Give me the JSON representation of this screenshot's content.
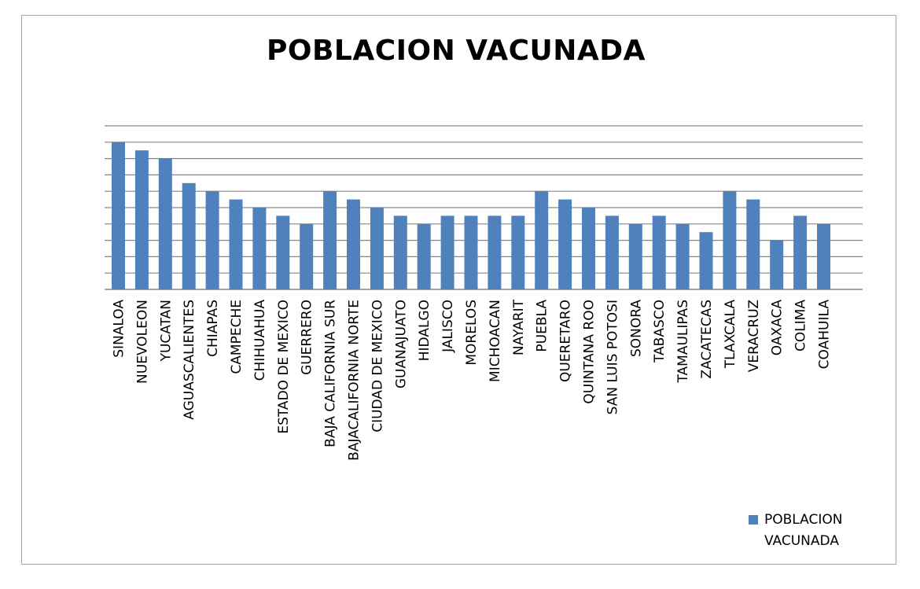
{
  "chart_data": {
    "type": "bar",
    "title": "POBLACION VACUNADA",
    "categories": [
      "SINALOA",
      "NUEVOLEON",
      "YUCATAN",
      "AGUASCALIENTES",
      "CHIAPAS",
      "CAMPECHE",
      "CHIHUAHUA",
      "ESTADO DE MEXICO",
      "GUERRERO",
      "BAJA CALIFORNIA SUR",
      "BAJACALIFORNIA NORTE",
      "CIUDAD DE MEXICO",
      "GUANAJUATO",
      "HIDALGO",
      "JALISCO",
      "MORELOS",
      "MICHOACAN",
      "NAYARIT",
      "PUEBLA",
      "QUERETARO",
      "QUINTANA ROO",
      "SAN LUIS POTOSI",
      "SONORA",
      "TABASCO",
      "TAMAULIPAS",
      "ZACATECAS",
      "TLAXCALA",
      "VERACRUZ",
      "OAXACA",
      "COLIMA",
      "COAHUILA"
    ],
    "series": [
      {
        "name": "POBLACION VACUNADA",
        "values": [
          9,
          8.5,
          8,
          6.5,
          6,
          5.5,
          5,
          4.5,
          4,
          6,
          5.5,
          5,
          4.5,
          4,
          4.5,
          4.5,
          4.5,
          4.5,
          6,
          5.5,
          5,
          4.5,
          4,
          4.5,
          4,
          3.5,
          6,
          5.5,
          3,
          4.5,
          4
        ]
      }
    ],
    "ylim": [
      0,
      10
    ],
    "grid": true,
    "y_tick_labels_shown": false,
    "legend_position": "bottom-right",
    "colors": {
      "bar": "#4f81bd",
      "grid": "#868686",
      "frame": "#a6a6a6"
    }
  }
}
